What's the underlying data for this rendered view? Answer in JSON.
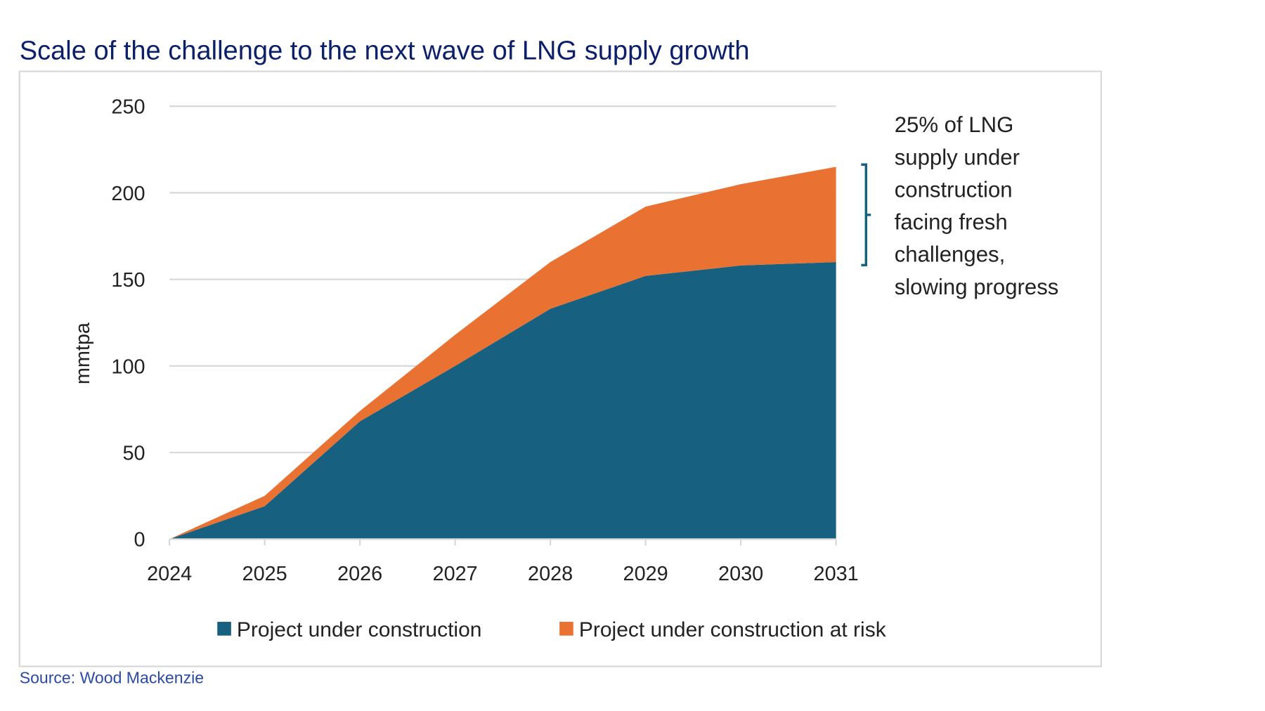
{
  "title": "Scale of the challenge to the next wave of LNG supply growth",
  "source": "Source: Wood Mackenzie",
  "annotation": [
    "25% of LNG",
    "supply under",
    "construction",
    "facing fresh",
    "challenges,",
    "slowing progress"
  ],
  "colors": {
    "title": "#0b1f6b",
    "construction": "#17607f",
    "at_risk": "#e97132",
    "source": "#2b4aa6"
  },
  "chart_data": {
    "type": "area",
    "stacked": true,
    "title": "Scale of the challenge to the next wave of LNG supply growth",
    "xlabel": "",
    "ylabel": "mmtpa",
    "x": [
      "2024",
      "2025",
      "2026",
      "2027",
      "2028",
      "2029",
      "2030",
      "2031"
    ],
    "ylim": [
      0,
      250
    ],
    "yticks": [
      "0",
      "50",
      "100",
      "150",
      "200",
      "250"
    ],
    "grid": true,
    "legend": "bottom",
    "series": [
      {
        "name": "Project under construction",
        "color": "#17607f",
        "values": [
          0,
          19,
          68,
          100,
          133,
          152,
          158,
          160
        ]
      },
      {
        "name": "Project under construction at risk",
        "color": "#e97132",
        "values": [
          0,
          6,
          6,
          18,
          27,
          40,
          47,
          55
        ]
      }
    ]
  }
}
